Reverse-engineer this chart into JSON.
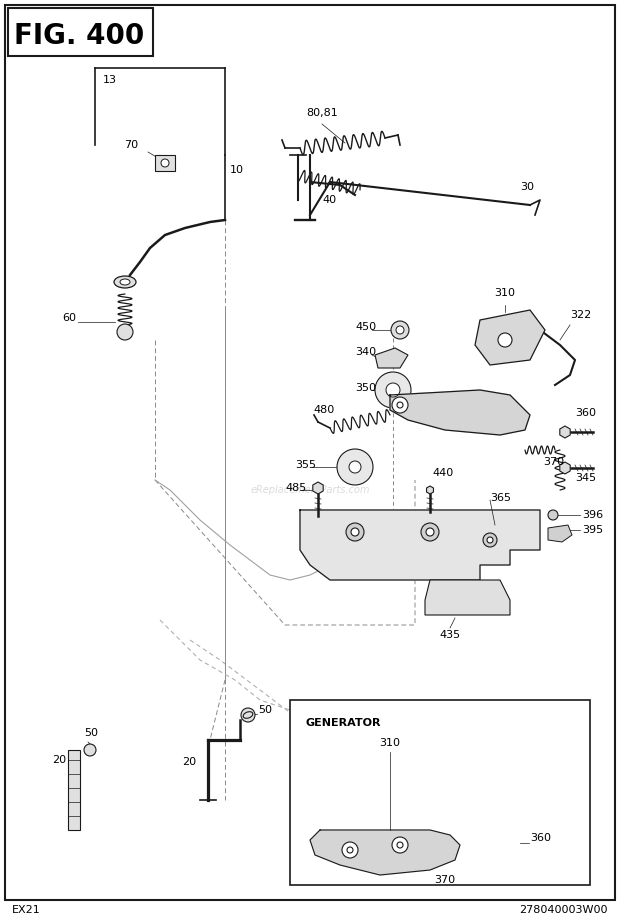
{
  "title": "FIG. 400",
  "bottom_left": "EX21",
  "bottom_right": "278040003W00",
  "bg_color": "#ffffff",
  "border_color": "#333333",
  "watermark": "eReplacementParts.com",
  "fig_width": 6.2,
  "fig_height": 9.21,
  "dpi": 100
}
